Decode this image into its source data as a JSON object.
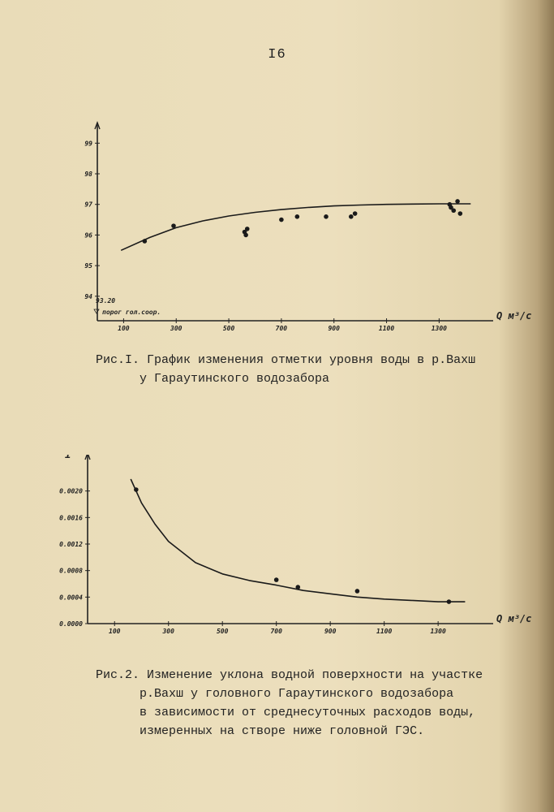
{
  "page": {
    "number": "I6",
    "caption1": "Рис.I. График изменения отметки уровня воды в р.Вахш\n      у Гараутинского водозабора",
    "caption2": "Рис.2. Изменение уклона водной поверхности на участке\n      р.Вахш у головного Гараутинского водозабора\n      в зависимости от среднесуточных расходов воды,\n      измеренных на створе ниже головной ГЭС."
  },
  "chart_data": [
    {
      "type": "line",
      "title": "",
      "xlabel": "Q м³/с",
      "ylabel": "",
      "x_ticks": [
        "100",
        "300",
        "500",
        "700",
        "900",
        "1100",
        "1300"
      ],
      "y_ticks": [
        "94",
        "95",
        "96",
        "97",
        "98",
        "99"
      ],
      "xlim": [
        0,
        1450
      ],
      "ylim": [
        93.2,
        99.3
      ],
      "annotation": "93.20\nпорог гол.соор.",
      "points": {
        "x": [
          180,
          290,
          560,
          565,
          570,
          700,
          760,
          870,
          965,
          980,
          1340,
          1345,
          1355,
          1370,
          1380
        ],
        "y": [
          95.8,
          96.3,
          96.1,
          96.0,
          96.2,
          96.5,
          96.6,
          96.6,
          96.6,
          96.7,
          97.0,
          96.9,
          96.8,
          97.1,
          96.7
        ]
      },
      "series": [
        {
          "x": [
            90,
            200,
            300,
            400,
            500,
            600,
            700,
            800,
            900,
            1000,
            1100,
            1200,
            1300,
            1350,
            1420
          ],
          "y": [
            95.5,
            95.92,
            96.24,
            96.46,
            96.62,
            96.74,
            96.83,
            96.9,
            96.95,
            96.98,
            97.0,
            97.01,
            97.02,
            97.02,
            97.02
          ]
        }
      ]
    },
    {
      "type": "line",
      "title": "",
      "xlabel": "Q м³/с",
      "ylabel": "i",
      "x_ticks": [
        "100",
        "300",
        "500",
        "700",
        "900",
        "1100",
        "1300"
      ],
      "y_ticks": [
        "0.0000",
        "0.0004",
        "0.0008",
        "0.0012",
        "0.0016",
        "0.0020"
      ],
      "xlim": [
        0,
        1450
      ],
      "ylim": [
        0.0,
        0.0024
      ],
      "points": {
        "x": [
          180,
          700,
          780,
          1000,
          1340
        ],
        "y": [
          0.00202,
          0.00066,
          0.00055,
          0.00049,
          0.00033
        ]
      },
      "series": [
        {
          "x": [
            160,
            200,
            250,
            300,
            400,
            500,
            600,
            700,
            800,
            900,
            1000,
            1100,
            1200,
            1300,
            1400
          ],
          "y": [
            0.00218,
            0.00182,
            0.0015,
            0.00124,
            0.00092,
            0.00075,
            0.00065,
            0.00058,
            0.0005,
            0.00045,
            0.0004,
            0.00037,
            0.00035,
            0.00033,
            0.00033
          ]
        }
      ]
    }
  ]
}
